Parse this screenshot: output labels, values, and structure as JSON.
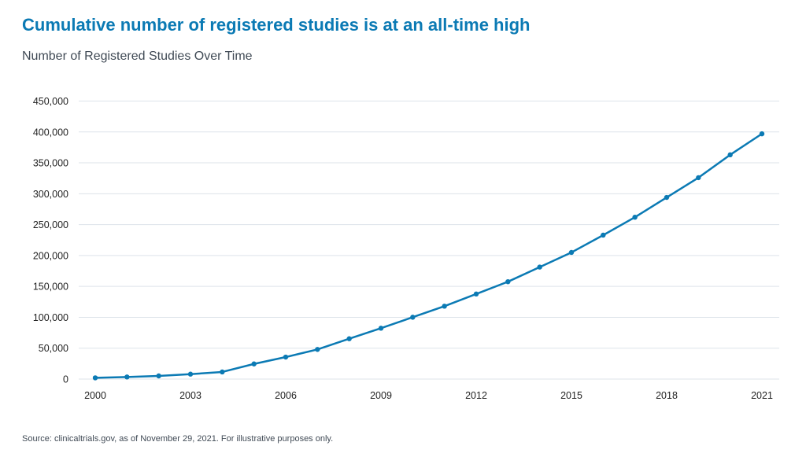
{
  "header": {
    "title": "Cumulative number of registered studies is at an all-time high",
    "subtitle": "Number of Registered Studies Over Time"
  },
  "footer": {
    "source": "Source: clinicaltrials.gov, as of November 29, 2021. For illustrative purposes only."
  },
  "chart_data": {
    "type": "line",
    "title": "Number of Registered Studies Over Time",
    "xlabel": "",
    "ylabel": "",
    "x": [
      2000,
      2001,
      2002,
      2003,
      2004,
      2005,
      2006,
      2007,
      2008,
      2009,
      2010,
      2011,
      2012,
      2013,
      2014,
      2015,
      2016,
      2017,
      2018,
      2019,
      2020,
      2021
    ],
    "series": [
      {
        "values": [
          2000,
          3400,
          5100,
          8000,
          11500,
          24500,
          35600,
          48000,
          65300,
          82300,
          100100,
          118000,
          137700,
          157600,
          181300,
          205000,
          233000,
          262000,
          294000,
          326000,
          363000,
          397000
        ]
      }
    ],
    "xlim": [
      2000,
      2021
    ],
    "ylim": [
      0,
      450000
    ],
    "x_ticks": [
      "2000",
      "2003",
      "2006",
      "2009",
      "2012",
      "2015",
      "2018",
      "2021"
    ],
    "y_ticks": [
      "0",
      "50,000",
      "100,000",
      "150,000",
      "200,000",
      "250,000",
      "300,000",
      "350,000",
      "400,000",
      "450,000"
    ],
    "grid": "horizontal",
    "markers": true,
    "legend": "none",
    "line_color": "#0b7ab4",
    "grid_color": "#dde3ea"
  }
}
